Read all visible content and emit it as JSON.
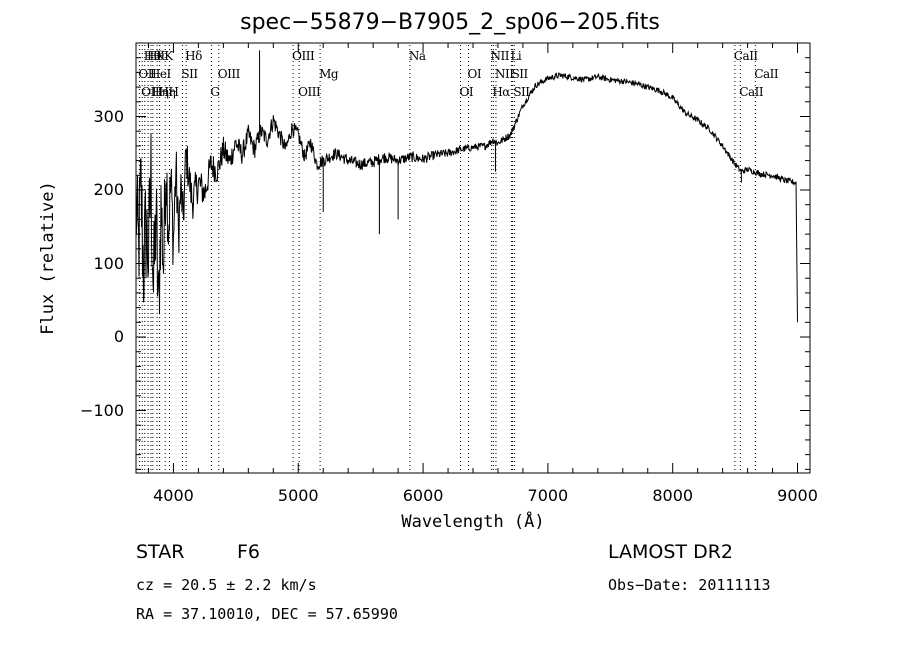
{
  "chart_data": {
    "type": "line",
    "title": "spec−55879−B7905_2_sp06−205.fits",
    "xlabel": "Wavelength (Å)",
    "ylabel": "Flux (relative)",
    "xlim": [
      3700,
      9100
    ],
    "ylim": [
      -185,
      400
    ],
    "x_ticks": [
      4000,
      5000,
      6000,
      7000,
      8000,
      9000
    ],
    "x_tick_labels": [
      "4000",
      "5000",
      "6000",
      "7000",
      "8000",
      "9000"
    ],
    "y_ticks": [
      -100,
      0,
      100,
      200,
      300
    ],
    "y_tick_labels": [
      "−100",
      "0",
      "100",
      "200",
      "300"
    ],
    "grid": false,
    "line_color": "#000000",
    "series": [
      {
        "values_x": [
          3700,
          3720,
          3740,
          3760,
          3780,
          3800,
          3820,
          3840,
          3860,
          3880,
          3900,
          3920,
          3940,
          3960,
          3980,
          4000,
          4020,
          4040,
          4060,
          4080,
          4100,
          4150,
          4200,
          4250,
          4300,
          4350,
          4400,
          4450,
          4500,
          4550,
          4600,
          4650,
          4700,
          4750,
          4800,
          4850,
          4900,
          4950,
          5000,
          5050,
          5100,
          5150,
          5200,
          5300,
          5400,
          5500,
          5600,
          5650,
          5700,
          5800,
          5900,
          6000,
          6100,
          6200,
          6300,
          6400,
          6500,
          6560,
          6600,
          6700,
          6800,
          6900,
          7000,
          7100,
          7200,
          7300,
          7400,
          7500,
          7600,
          7700,
          7800,
          7900,
          8000,
          8100,
          8200,
          8300,
          8400,
          8500,
          8550,
          8600,
          8700,
          8800,
          8900,
          8990,
          9000
        ],
        "values_y": [
          180,
          120,
          200,
          90,
          150,
          110,
          220,
          60,
          170,
          30,
          180,
          100,
          240,
          150,
          210,
          130,
          230,
          140,
          200,
          160,
          250,
          185,
          210,
          195,
          235,
          225,
          255,
          238,
          265,
          248,
          275,
          255,
          280,
          268,
          295,
          275,
          255,
          285,
          275,
          245,
          265,
          235,
          240,
          250,
          240,
          235,
          238,
          242,
          245,
          240,
          245,
          242,
          248,
          250,
          255,
          258,
          260,
          268,
          264,
          275,
          315,
          342,
          352,
          356,
          353,
          350,
          354,
          350,
          348,
          345,
          340,
          335,
          325,
          305,
          295,
          282,
          260,
          235,
          225,
          228,
          222,
          220,
          213,
          210,
          20
        ],
        "noise": [
          70,
          80,
          90,
          80,
          90,
          80,
          90,
          80,
          80,
          80,
          70,
          70,
          60,
          55,
          50,
          50,
          45,
          40,
          35,
          30,
          30,
          28,
          25,
          22,
          20,
          18,
          18,
          16,
          15,
          14,
          14,
          13,
          12,
          12,
          12,
          11,
          11,
          10,
          10,
          10,
          10,
          9,
          9,
          8,
          8,
          8,
          8,
          8,
          8,
          7,
          7,
          7,
          6,
          6,
          5,
          5,
          5,
          5,
          5,
          5,
          4,
          4,
          4,
          4,
          4,
          4,
          4,
          4,
          4,
          4,
          4,
          4,
          4,
          4,
          4,
          4,
          4,
          4,
          4,
          4,
          4,
          4,
          4,
          4,
          0
        ]
      }
    ],
    "spikes": [
      {
        "x": 4690,
        "y": 390
      },
      {
        "x": 5200,
        "y": 170
      },
      {
        "x": 5650,
        "y": 140
      },
      {
        "x": 5800,
        "y": 160
      },
      {
        "x": 6580,
        "y": 225
      },
      {
        "x": 8550,
        "y": 210
      }
    ],
    "line_markers": [
      {
        "x": 3727,
        "label": "OII",
        "row": 2
      },
      {
        "x": 3750,
        "label": "OII",
        "row": 3
      },
      {
        "x": 3770,
        "label": "Hθ",
        "row": 1
      },
      {
        "x": 3797,
        "label": "Hθ",
        "row": 1
      },
      {
        "x": 3820,
        "label": "HeI",
        "row": 2
      },
      {
        "x": 3835,
        "label": "Hη",
        "row": 3
      },
      {
        "x": 3869,
        "label": "K",
        "row": 1
      },
      {
        "x": 3889,
        "label": "Hη",
        "row": 3
      },
      {
        "x": 3934,
        "label": "K",
        "row": 1
      },
      {
        "x": 3968,
        "label": "H",
        "row": 3
      },
      {
        "x": 4072,
        "label": "SII",
        "row": 2
      },
      {
        "x": 4102,
        "label": "Hδ",
        "row": 1
      },
      {
        "x": 4304,
        "label": "G",
        "row": 3
      },
      {
        "x": 4363,
        "label": "OIII",
        "row": 2
      },
      {
        "x": 4959,
        "label": "OIII",
        "row": 1
      },
      {
        "x": 5007,
        "label": "OIII",
        "row": 3
      },
      {
        "x": 5175,
        "label": "Mg",
        "row": 2
      },
      {
        "x": 5894,
        "label": "Na",
        "row": 1
      },
      {
        "x": 6300,
        "label": "OI",
        "row": 3
      },
      {
        "x": 6364,
        "label": "OI",
        "row": 2
      },
      {
        "x": 6548,
        "label": "NII",
        "row": 1
      },
      {
        "x": 6563,
        "label": "Hα",
        "row": 3
      },
      {
        "x": 6584,
        "label": "NII",
        "row": 2
      },
      {
        "x": 6708,
        "label": "Li",
        "row": 1
      },
      {
        "x": 6717,
        "label": "SII",
        "row": 2
      },
      {
        "x": 6731,
        "label": "SII",
        "row": 3
      },
      {
        "x": 8498,
        "label": "CaII",
        "row": 1
      },
      {
        "x": 8542,
        "label": "CaII",
        "row": 3
      },
      {
        "x": 8662,
        "label": "CaII",
        "row": 2
      }
    ]
  },
  "info": {
    "class": "STAR",
    "subclass": "F6",
    "survey": "LAMOST DR2",
    "cz": "cz = 20.5 ± 2.2 km/s",
    "obs_date": "Obs−Date: 20111113",
    "radec": "RA =  37.10010, DEC =  57.65990"
  }
}
